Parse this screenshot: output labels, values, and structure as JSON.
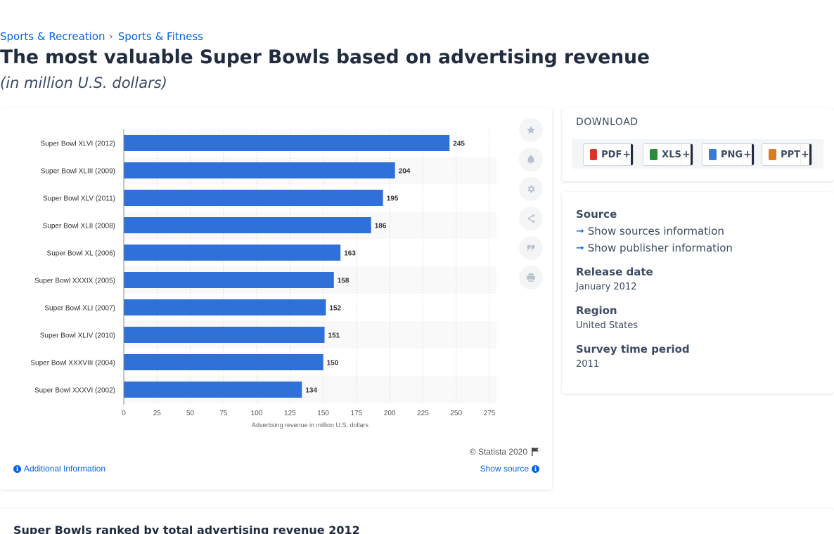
{
  "breadcrumb": [
    "Sports & Recreation",
    "Sports & Fitness"
  ],
  "title": "The most valuable Super Bowls based on advertising revenue",
  "subtitle": "(in million U.S. dollars)",
  "chart_data": {
    "type": "bar",
    "orientation": "horizontal",
    "categories": [
      "Super Bowl XLVI (2012)",
      "Super Bowl XLIII (2009)",
      "Super Bowl XLV (2011)",
      "Super Bowl XLII (2008)",
      "Super Bowl XL (2006)",
      "Super Bowl XXXIX (2005)",
      "Super Bowl XLI (2007)",
      "Super Bowl XLIV (2010)",
      "Super Bowl XXXVIII (2004)",
      "Super Bowl XXXVI (2002)"
    ],
    "values": [
      245,
      204,
      195,
      186,
      163,
      158,
      152,
      151,
      150,
      134
    ],
    "xlabel": "Advertising revenue in million U.S. dollars",
    "xlim": [
      0,
      275
    ],
    "xticks": [
      0,
      25,
      50,
      75,
      100,
      125,
      150,
      175,
      200,
      225,
      250,
      275
    ],
    "grid": true,
    "bar_color": "#3071d9"
  },
  "chart_footer": {
    "copyright": "© Statista 2020",
    "additional": "Additional Information",
    "show_source": "Show source"
  },
  "tools": [
    "star-icon",
    "bell-icon",
    "gear-icon",
    "share-icon",
    "quote-icon",
    "print-icon"
  ],
  "download": {
    "title": "DOWNLOAD",
    "buttons": [
      {
        "label": "PDF",
        "color": "#d9352b"
      },
      {
        "label": "XLS",
        "color": "#2f8a3b"
      },
      {
        "label": "PNG",
        "color": "#3a7bd5"
      },
      {
        "label": "PPT",
        "color": "#e07a1f"
      }
    ],
    "plus": "+"
  },
  "meta": {
    "source_label": "Source",
    "show_sources": "Show sources information",
    "show_publisher": "Show publisher information",
    "release_label": "Release date",
    "release_value": "January 2012",
    "region_label": "Region",
    "region_value": "United States",
    "period_label": "Survey time period",
    "period_value": "2011"
  },
  "bottom_title": "Super Bowls ranked by total advertising revenue 2012"
}
